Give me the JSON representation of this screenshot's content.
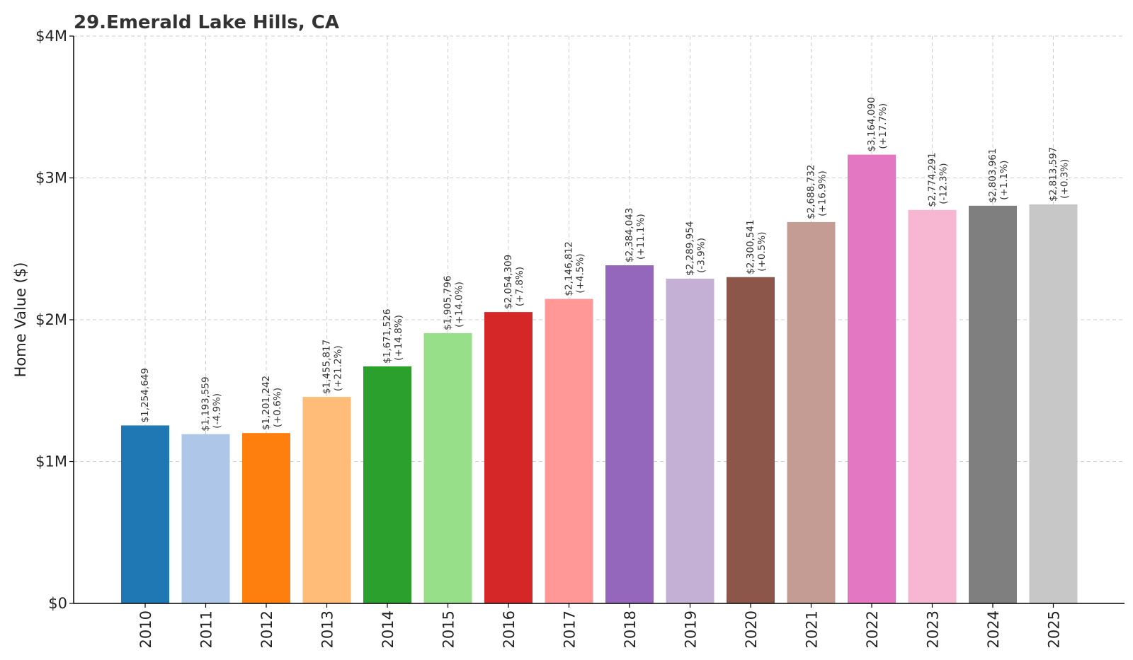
{
  "chart_data": {
    "type": "bar",
    "title": "29.Emerald Lake Hills, CA",
    "xlabel": "",
    "ylabel": "Home Value ($)",
    "ylim": [
      0,
      4000000
    ],
    "yticks": [
      {
        "value": 0,
        "label": "$0"
      },
      {
        "value": 1000000,
        "label": "$1M"
      },
      {
        "value": 2000000,
        "label": "$2M"
      },
      {
        "value": 3000000,
        "label": "$3M"
      },
      {
        "value": 4000000,
        "label": "$4M"
      }
    ],
    "grid": true,
    "categories": [
      "2010",
      "2011",
      "2012",
      "2013",
      "2014",
      "2015",
      "2016",
      "2017",
      "2018",
      "2019",
      "2020",
      "2021",
      "2022",
      "2023",
      "2024",
      "2025"
    ],
    "values": [
      1254649,
      1193559,
      1201242,
      1455817,
      1671526,
      1905796,
      2054309,
      2146812,
      2384043,
      2289954,
      2300541,
      2688732,
      3164090,
      2774291,
      2803961,
      2813597
    ],
    "value_labels": [
      "$1,254,649",
      "$1,193,559",
      "$1,201,242",
      "$1,455,817",
      "$1,671,526",
      "$1,905,796",
      "$2,054,309",
      "$2,146,812",
      "$2,384,043",
      "$2,289,954",
      "$2,300,541",
      "$2,688,732",
      "$3,164,090",
      "$2,774,291",
      "$2,803,961",
      "$2,813,597"
    ],
    "change_labels": [
      "",
      "(-4.9%)",
      "(+0.6%)",
      "(+21.2%)",
      "(+14.8%)",
      "(+14.0%)",
      "(+7.8%)",
      "(+4.5%)",
      "(+11.1%)",
      "(-3.9%)",
      "(+0.5%)",
      "(+16.9%)",
      "(+17.7%)",
      "(-12.3%)",
      "(+1.1%)",
      "(+0.3%)"
    ],
    "colors": [
      "#1f77b4",
      "#aec7e8",
      "#ff7f0e",
      "#ffbb78",
      "#2ca02c",
      "#98df8a",
      "#d62728",
      "#ff9896",
      "#9467bd",
      "#c5b0d5",
      "#8c564b",
      "#c49c94",
      "#e377c2",
      "#f7b6d2",
      "#7f7f7f",
      "#c7c7c7"
    ]
  }
}
